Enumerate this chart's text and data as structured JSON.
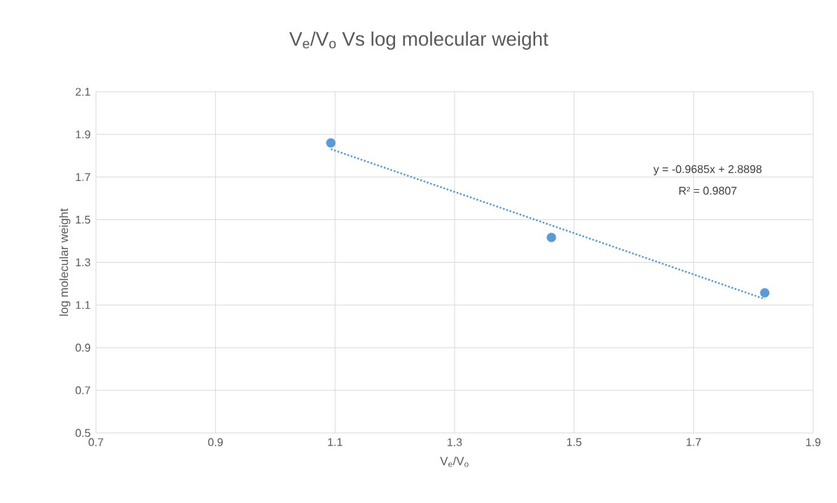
{
  "chart_data": {
    "type": "scatter",
    "title": "V$_{e}$/V$_{o}$ Vs log molecular weight",
    "xlabel": "V$_{e}$/V$_{o}$",
    "ylabel": "log molecular weight",
    "xlim": [
      0.7,
      1.9
    ],
    "xticks": [
      0.7,
      0.9,
      1.1,
      1.3,
      1.5,
      1.7,
      1.9
    ],
    "ylim": [
      0.5,
      2.1
    ],
    "yticks": [
      0.5,
      0.7,
      0.9,
      1.1,
      1.3,
      1.5,
      1.7,
      1.9,
      2.1
    ],
    "grid": true,
    "series": [
      {
        "color": "#5b9bd5",
        "marker": "circle",
        "x": [
          1.093,
          1.462,
          1.819
        ],
        "values": [
          1.86,
          1.417,
          1.157
        ]
      },
      {
        "type": "line",
        "color": "#5b9bd5",
        "line_style": "dotted",
        "marker": "none",
        "x": [
          1.093,
          1.819
        ],
        "values": [
          1.831,
          1.128
        ]
      }
    ],
    "annotations": [
      "y = -0.9685x + 2.8898",
      "R² = 0.9807"
    ]
  }
}
